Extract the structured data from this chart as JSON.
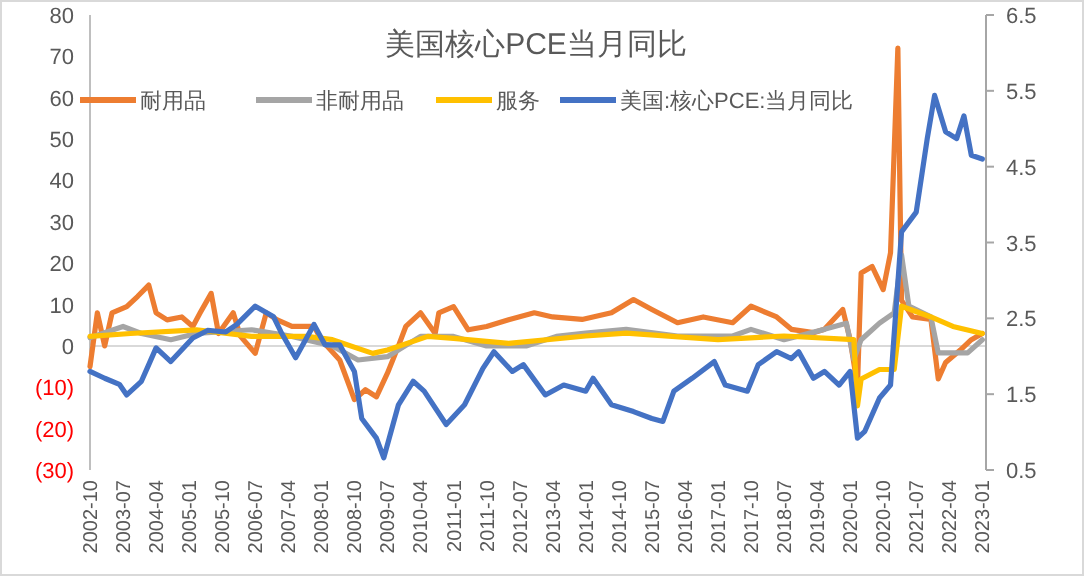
{
  "chart_data": {
    "type": "line",
    "title": "美国核心PCE当月同比",
    "legend": "top",
    "marker": "none",
    "line_style": "solid",
    "grid": false,
    "xlim": [
      "2002-10",
      "2023-02"
    ],
    "xticks": [
      "2002-10",
      "2003-07",
      "2004-04",
      "2005-01",
      "2005-10",
      "2006-07",
      "2007-04",
      "2008-01",
      "2008-10",
      "2009-07",
      "2010-04",
      "2011-01",
      "2011-10",
      "2012-07",
      "2013-04",
      "2014-01",
      "2014-10",
      "2015-07",
      "2016-04",
      "2017-01",
      "2017-10",
      "2018-07",
      "2019-04",
      "2020-01",
      "2020-10",
      "2021-07",
      "2022-04",
      "2023-01"
    ],
    "ylim": [
      -30,
      80
    ],
    "yticks": [
      {
        "value": -30,
        "label": "(30)"
      },
      {
        "value": -20,
        "label": "(20)"
      },
      {
        "value": -10,
        "label": "(10)"
      },
      0,
      10,
      20,
      30,
      40,
      50,
      60,
      70,
      80
    ],
    "ref_lines": [
      {
        "axis": "y",
        "value": 0,
        "color": "#d9d9d9"
      }
    ],
    "y2lim": [
      0.5,
      6.5
    ],
    "y2ticks": [
      0.5,
      1.5,
      2.5,
      3.5,
      4.5,
      5.5,
      6.5
    ],
    "series": [
      {
        "name": "耐用品",
        "color": "#ed7d31",
        "x": [
          "2002-10",
          "2002-12",
          "2003-02",
          "2003-04",
          "2003-08",
          "2003-11",
          "2004-02",
          "2004-04",
          "2004-07",
          "2004-11",
          "2005-02",
          "2005-04",
          "2005-07",
          "2005-09",
          "2006-01",
          "2006-03",
          "2006-07",
          "2006-10",
          "2007-01",
          "2007-05",
          "2007-11",
          "2008-01",
          "2008-06",
          "2008-10",
          "2009-01",
          "2009-04",
          "2009-07",
          "2009-10",
          "2009-12",
          "2010-04",
          "2010-08",
          "2010-09",
          "2011-01",
          "2011-05",
          "2011-10",
          "2012-04",
          "2012-11",
          "2013-04",
          "2013-12",
          "2014-08",
          "2015-02",
          "2015-07",
          "2016-02",
          "2016-09",
          "2017-05",
          "2017-10",
          "2018-05",
          "2018-09",
          "2019-03",
          "2019-06",
          "2019-11",
          "2020-01",
          "2020-03",
          "2020-04",
          "2020-07",
          "2020-10",
          "2020-12",
          "2021-02",
          "2021-03",
          "2021-06",
          "2021-11",
          "2022-01",
          "2022-03",
          "2022-07",
          "2022-10",
          "2023-01"
        ],
        "values": [
          -5,
          8,
          0,
          8,
          9.5,
          12,
          14.7,
          8,
          6.3,
          7,
          4.7,
          8,
          12.7,
          3,
          8,
          2.3,
          -1.8,
          8,
          6.3,
          4.7,
          4.7,
          1.5,
          -3.4,
          -13,
          -10.6,
          -12.3,
          -6.6,
          0,
          4.7,
          8,
          3,
          8,
          9.5,
          3.9,
          4.7,
          6.3,
          8,
          7,
          6.4,
          8,
          11.2,
          8.8,
          5.6,
          7,
          5.6,
          9.6,
          7,
          4,
          3.2,
          4,
          8.8,
          1.5,
          -9.7,
          17.6,
          19.2,
          13.6,
          22.5,
          72,
          11,
          7,
          6.4,
          -8,
          -4,
          -1,
          1.5,
          3
        ]
      },
      {
        "name": "非耐用品",
        "color": "#a5a5a5",
        "x": [
          "2002-10",
          "2003-07",
          "2003-12",
          "2004-08",
          "2005-03",
          "2006-06",
          "2007-05",
          "2008-04",
          "2008-11",
          "2009-07",
          "2010-04",
          "2011-01",
          "2011-10",
          "2012-09",
          "2013-05",
          "2014-01",
          "2014-12",
          "2016-02",
          "2017-05",
          "2017-10",
          "2018-07",
          "2019-06",
          "2019-12",
          "2020-02",
          "2020-04",
          "2020-09",
          "2021-01",
          "2021-03",
          "2021-05",
          "2021-11",
          "2022-01",
          "2022-09",
          "2023-01"
        ],
        "values": [
          2,
          4.7,
          3,
          1.5,
          3,
          3.9,
          2.3,
          0,
          -3.4,
          -2.6,
          2.3,
          2.3,
          0,
          0,
          2.3,
          3.1,
          4,
          2.4,
          2.4,
          4,
          1.5,
          4,
          5.5,
          -3.3,
          1.5,
          5.5,
          8,
          22,
          9.6,
          7,
          -1.7,
          -1.7,
          1.5
        ]
      },
      {
        "name": "服务",
        "color": "#ffc000",
        "x": [
          "2002-10",
          "2003-09",
          "2005-03",
          "2006-06",
          "2007-09",
          "2008-04",
          "2009-03",
          "2009-07",
          "2010-06",
          "2011-01",
          "2012-04",
          "2014-01",
          "2014-12",
          "2017-01",
          "2018-07",
          "2020-02",
          "2020-03",
          "2020-04",
          "2020-09",
          "2021-01",
          "2021-03",
          "2021-11",
          "2022-05",
          "2023-01"
        ],
        "values": [
          2.3,
          3,
          3.9,
          2.3,
          2.3,
          1.5,
          -1.8,
          -1,
          2.3,
          1.8,
          0.6,
          2.4,
          3.1,
          1.5,
          2.4,
          1.5,
          -14.5,
          -8,
          -5.7,
          -5.7,
          9.6,
          7,
          4.7,
          3
        ]
      },
      {
        "name": "美国:核心PCE:当月同比",
        "color": "#4472c4",
        "axis": "y2",
        "x": [
          "2002-10",
          "2003-02",
          "2003-06",
          "2003-08",
          "2003-12",
          "2004-02",
          "2004-04",
          "2004-08",
          "2005-02",
          "2005-06",
          "2005-11",
          "2006-02",
          "2006-07",
          "2006-12",
          "2007-02",
          "2007-06",
          "2007-11",
          "2008-02",
          "2008-06",
          "2008-10",
          "2008-12",
          "2009-04",
          "2009-06",
          "2009-10",
          "2010-02",
          "2010-05",
          "2010-11",
          "2011-04",
          "2011-09",
          "2011-12",
          "2012-05",
          "2012-08",
          "2013-02",
          "2013-07",
          "2014-01",
          "2014-03",
          "2014-08",
          "2015-02",
          "2015-07",
          "2015-10",
          "2016-01",
          "2016-06",
          "2016-12",
          "2017-03",
          "2017-09",
          "2017-12",
          "2018-05",
          "2018-09",
          "2018-11",
          "2019-03",
          "2019-06",
          "2019-10",
          "2020-01",
          "2020-03",
          "2020-05",
          "2020-09",
          "2020-12",
          "2021-03",
          "2021-07",
          "2021-10",
          "2021-12",
          "2022-03",
          "2022-06",
          "2022-08",
          "2022-10",
          "2023-01"
        ],
        "values": [
          1.8,
          1.71,
          1.63,
          1.49,
          1.67,
          1.89,
          2.11,
          1.93,
          2.24,
          2.34,
          2.32,
          2.42,
          2.66,
          2.52,
          2.32,
          1.98,
          2.42,
          2.15,
          2.15,
          1.8,
          1.18,
          0.92,
          0.66,
          1.36,
          1.67,
          1.54,
          1.1,
          1.36,
          1.84,
          2.06,
          1.8,
          1.89,
          1.49,
          1.62,
          1.54,
          1.71,
          1.36,
          1.27,
          1.18,
          1.14,
          1.54,
          1.71,
          1.93,
          1.62,
          1.54,
          1.89,
          2.06,
          1.97,
          2.06,
          1.71,
          1.8,
          1.62,
          1.8,
          0.92,
          1.01,
          1.45,
          1.62,
          3.64,
          3.9,
          4.87,
          5.44,
          4.96,
          4.87,
          5.17,
          4.65,
          4.6
        ]
      }
    ]
  }
}
